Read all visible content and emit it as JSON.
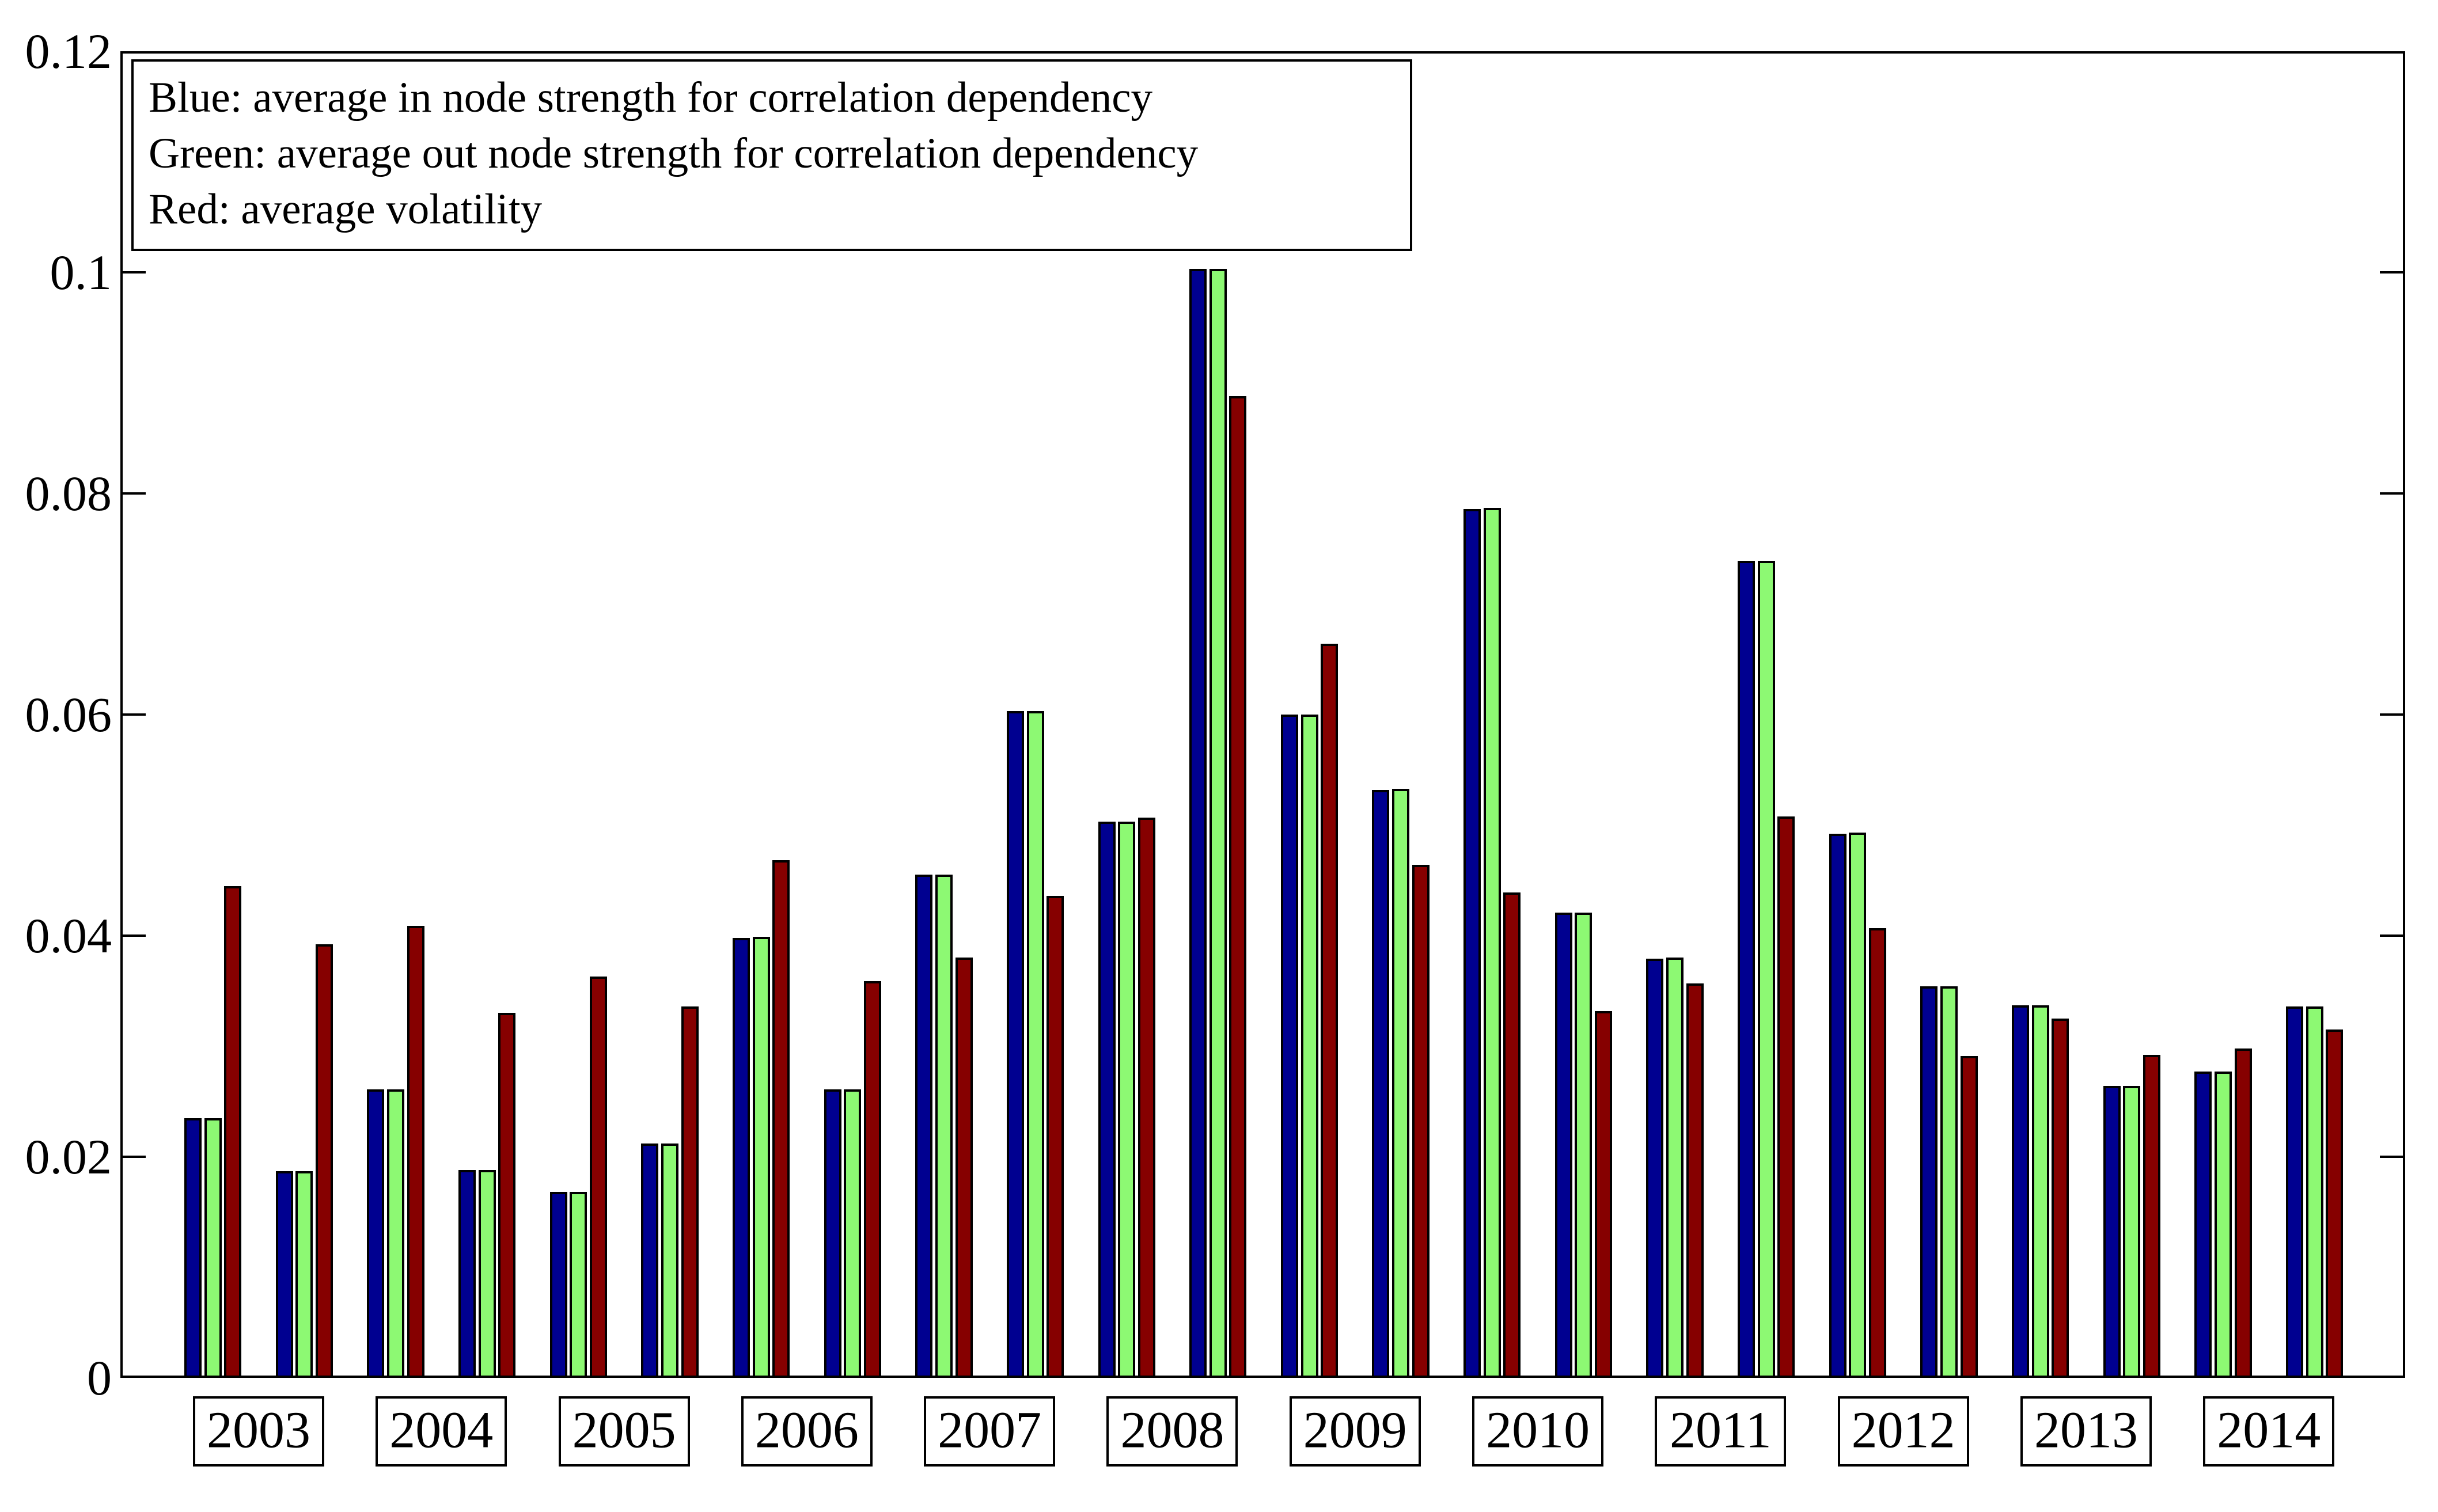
{
  "legend": {
    "lines": [
      "Blue: average in node strength for correlation dependency",
      "Green: average out node strength for correlation dependency",
      "Red: average volatility"
    ]
  },
  "y_axis": {
    "tick_labels": [
      "0",
      "0.02",
      "0.04",
      "0.06",
      "0.08",
      "0.1",
      "0.12"
    ],
    "tick_values": [
      0,
      0.02,
      0.04,
      0.06,
      0.08,
      0.1,
      0.12
    ],
    "min": 0,
    "max": 0.12
  },
  "x_axis": {
    "years": [
      "2003",
      "2004",
      "2005",
      "2006",
      "2007",
      "2008",
      "2009",
      "2010",
      "2011",
      "2012",
      "2013",
      "2014"
    ]
  },
  "colors": {
    "in_strength_blue": "#000090",
    "out_strength_green": "#8DF973",
    "volatility_red": "#860000",
    "axis_black": "#000000",
    "background": "#ffffff"
  },
  "chart_data": {
    "type": "bar",
    "title": "",
    "xlabel": "",
    "ylabel": "",
    "ylim": [
      0,
      0.12
    ],
    "grid": false,
    "legend_position": "top-left",
    "categories": [
      "2003 H1",
      "2003 H2",
      "2004 H1",
      "2004 H2",
      "2005 H1",
      "2005 H2",
      "2006 H1",
      "2006 H2",
      "2007 H1",
      "2007 H2",
      "2008 H1",
      "2008 H2",
      "2009 H1",
      "2009 H2",
      "2010 H1",
      "2010 H2",
      "2011 H1",
      "2011 H2",
      "2012 H1",
      "2012 H2",
      "2013 H1",
      "2013 H2",
      "2014 H1",
      "2014 H2"
    ],
    "series": [
      {
        "name": "average in node strength for correlation dependency",
        "color": "#000090",
        "values": [
          0.0235,
          0.0187,
          0.0261,
          0.0188,
          0.0168,
          0.0212,
          0.0398,
          0.0261,
          0.0455,
          0.0603,
          0.0503,
          0.1003,
          0.06,
          0.0532,
          0.0786,
          0.0421,
          0.0379,
          0.0739,
          0.0492,
          0.0354,
          0.0337,
          0.0264,
          0.0277,
          0.0336
        ]
      },
      {
        "name": "average out node strength for correlation dependency",
        "color": "#8DF973",
        "values": [
          0.0235,
          0.0187,
          0.0261,
          0.0188,
          0.0168,
          0.0212,
          0.0399,
          0.0261,
          0.0455,
          0.0603,
          0.0503,
          0.1003,
          0.06,
          0.0533,
          0.0787,
          0.0421,
          0.038,
          0.0739,
          0.0493,
          0.0354,
          0.0337,
          0.0264,
          0.0277,
          0.0336
        ]
      },
      {
        "name": "average volatility",
        "color": "#860000",
        "values": [
          0.0445,
          0.0392,
          0.0409,
          0.033,
          0.0363,
          0.0336,
          0.0468,
          0.0359,
          0.038,
          0.0436,
          0.0507,
          0.0888,
          0.0664,
          0.0464,
          0.0439,
          0.0332,
          0.0357,
          0.0508,
          0.0407,
          0.0291,
          0.0325,
          0.0292,
          0.0298,
          0.0315
        ]
      }
    ]
  }
}
